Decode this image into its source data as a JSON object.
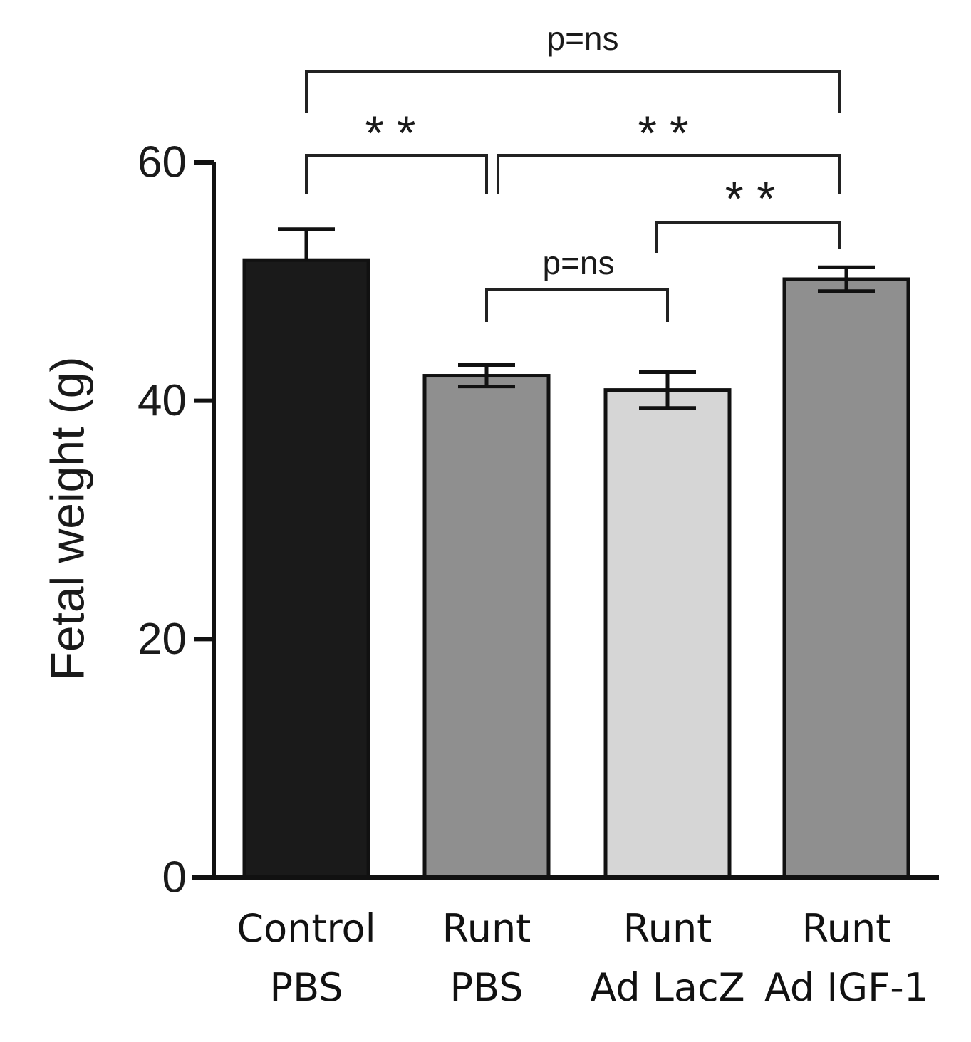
{
  "chart_data": {
    "type": "bar",
    "ylabel": "Fetal weight (g)",
    "ylim": [
      0,
      60
    ],
    "yticks": [
      "0",
      "20",
      "40",
      "60"
    ],
    "grid": false,
    "categories": [
      {
        "line1": "Control",
        "line2": "PBS"
      },
      {
        "line1": "Runt",
        "line2": "PBS"
      },
      {
        "line1": "Runt",
        "line2": "Ad LacZ"
      },
      {
        "line1": "Runt",
        "line2": "Ad IGF-1"
      }
    ],
    "values": [
      51.8,
      42.1,
      40.9,
      50.2
    ],
    "errors": [
      2.6,
      0.9,
      1.5,
      1.0
    ],
    "colors": [
      "#1a1a1a",
      "#8f8f8f",
      "#d6d6d6",
      "#8f8f8f"
    ],
    "annotations": [
      {
        "from": 0,
        "to": 3,
        "label": "p=ns"
      },
      {
        "from": 0,
        "to": 1,
        "label": "**"
      },
      {
        "from": 1,
        "to": 3,
        "label": "**"
      },
      {
        "from": 2,
        "to": 3,
        "label": "**"
      },
      {
        "from": 1,
        "to": 2,
        "label": "p=ns"
      }
    ]
  }
}
